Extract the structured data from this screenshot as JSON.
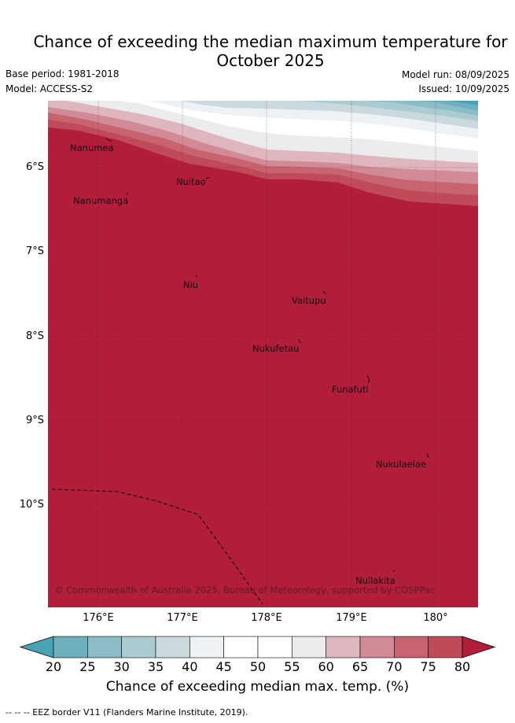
{
  "title_line1": "Chance of exceeding the median maximum temperature for",
  "title_line2": "October 2025",
  "base_period": "Base period: 1981-2018",
  "model": "Model: ACCESS-S2",
  "model_run": "Model run: 08/09/2025",
  "issued": "Issued: 10/09/2025",
  "y_ticks": [
    "6°S",
    "7°S",
    "8°S",
    "9°S",
    "10°S"
  ],
  "x_ticks": [
    "176°E",
    "177°E",
    "178°E",
    "179°E",
    "180°"
  ],
  "places": [
    "Nanumea",
    "Nanumanga",
    "Nuitao",
    "Niu",
    "Vaitupu",
    "Nukufetau",
    "Funafuti",
    "Nukulaelae",
    "Nuilakita"
  ],
  "copyright": "© Commonwealth of Australia 2025, Bureau of Meteorology, supported by COSPPac",
  "colorbar": {
    "ticks": [
      "20",
      "25",
      "30",
      "35",
      "40",
      "45",
      "50",
      "55",
      "60",
      "65",
      "70",
      "75",
      "80"
    ],
    "colors": [
      "#4aa3b4",
      "#6eafbd",
      "#8cbcc6",
      "#aacbd0",
      "#c9d9de",
      "#eef2f4",
      "#ffffff",
      "#ffffff",
      "#ececee",
      "#dfb6be",
      "#d28a96",
      "#c7646f",
      "#c04a59",
      "#b21d3a"
    ],
    "label": "Chance of exceeding median max. temp. (%)"
  },
  "footer": "--  --  -- EEZ border V11 (Flanders Marine Institute, 2019)."
}
